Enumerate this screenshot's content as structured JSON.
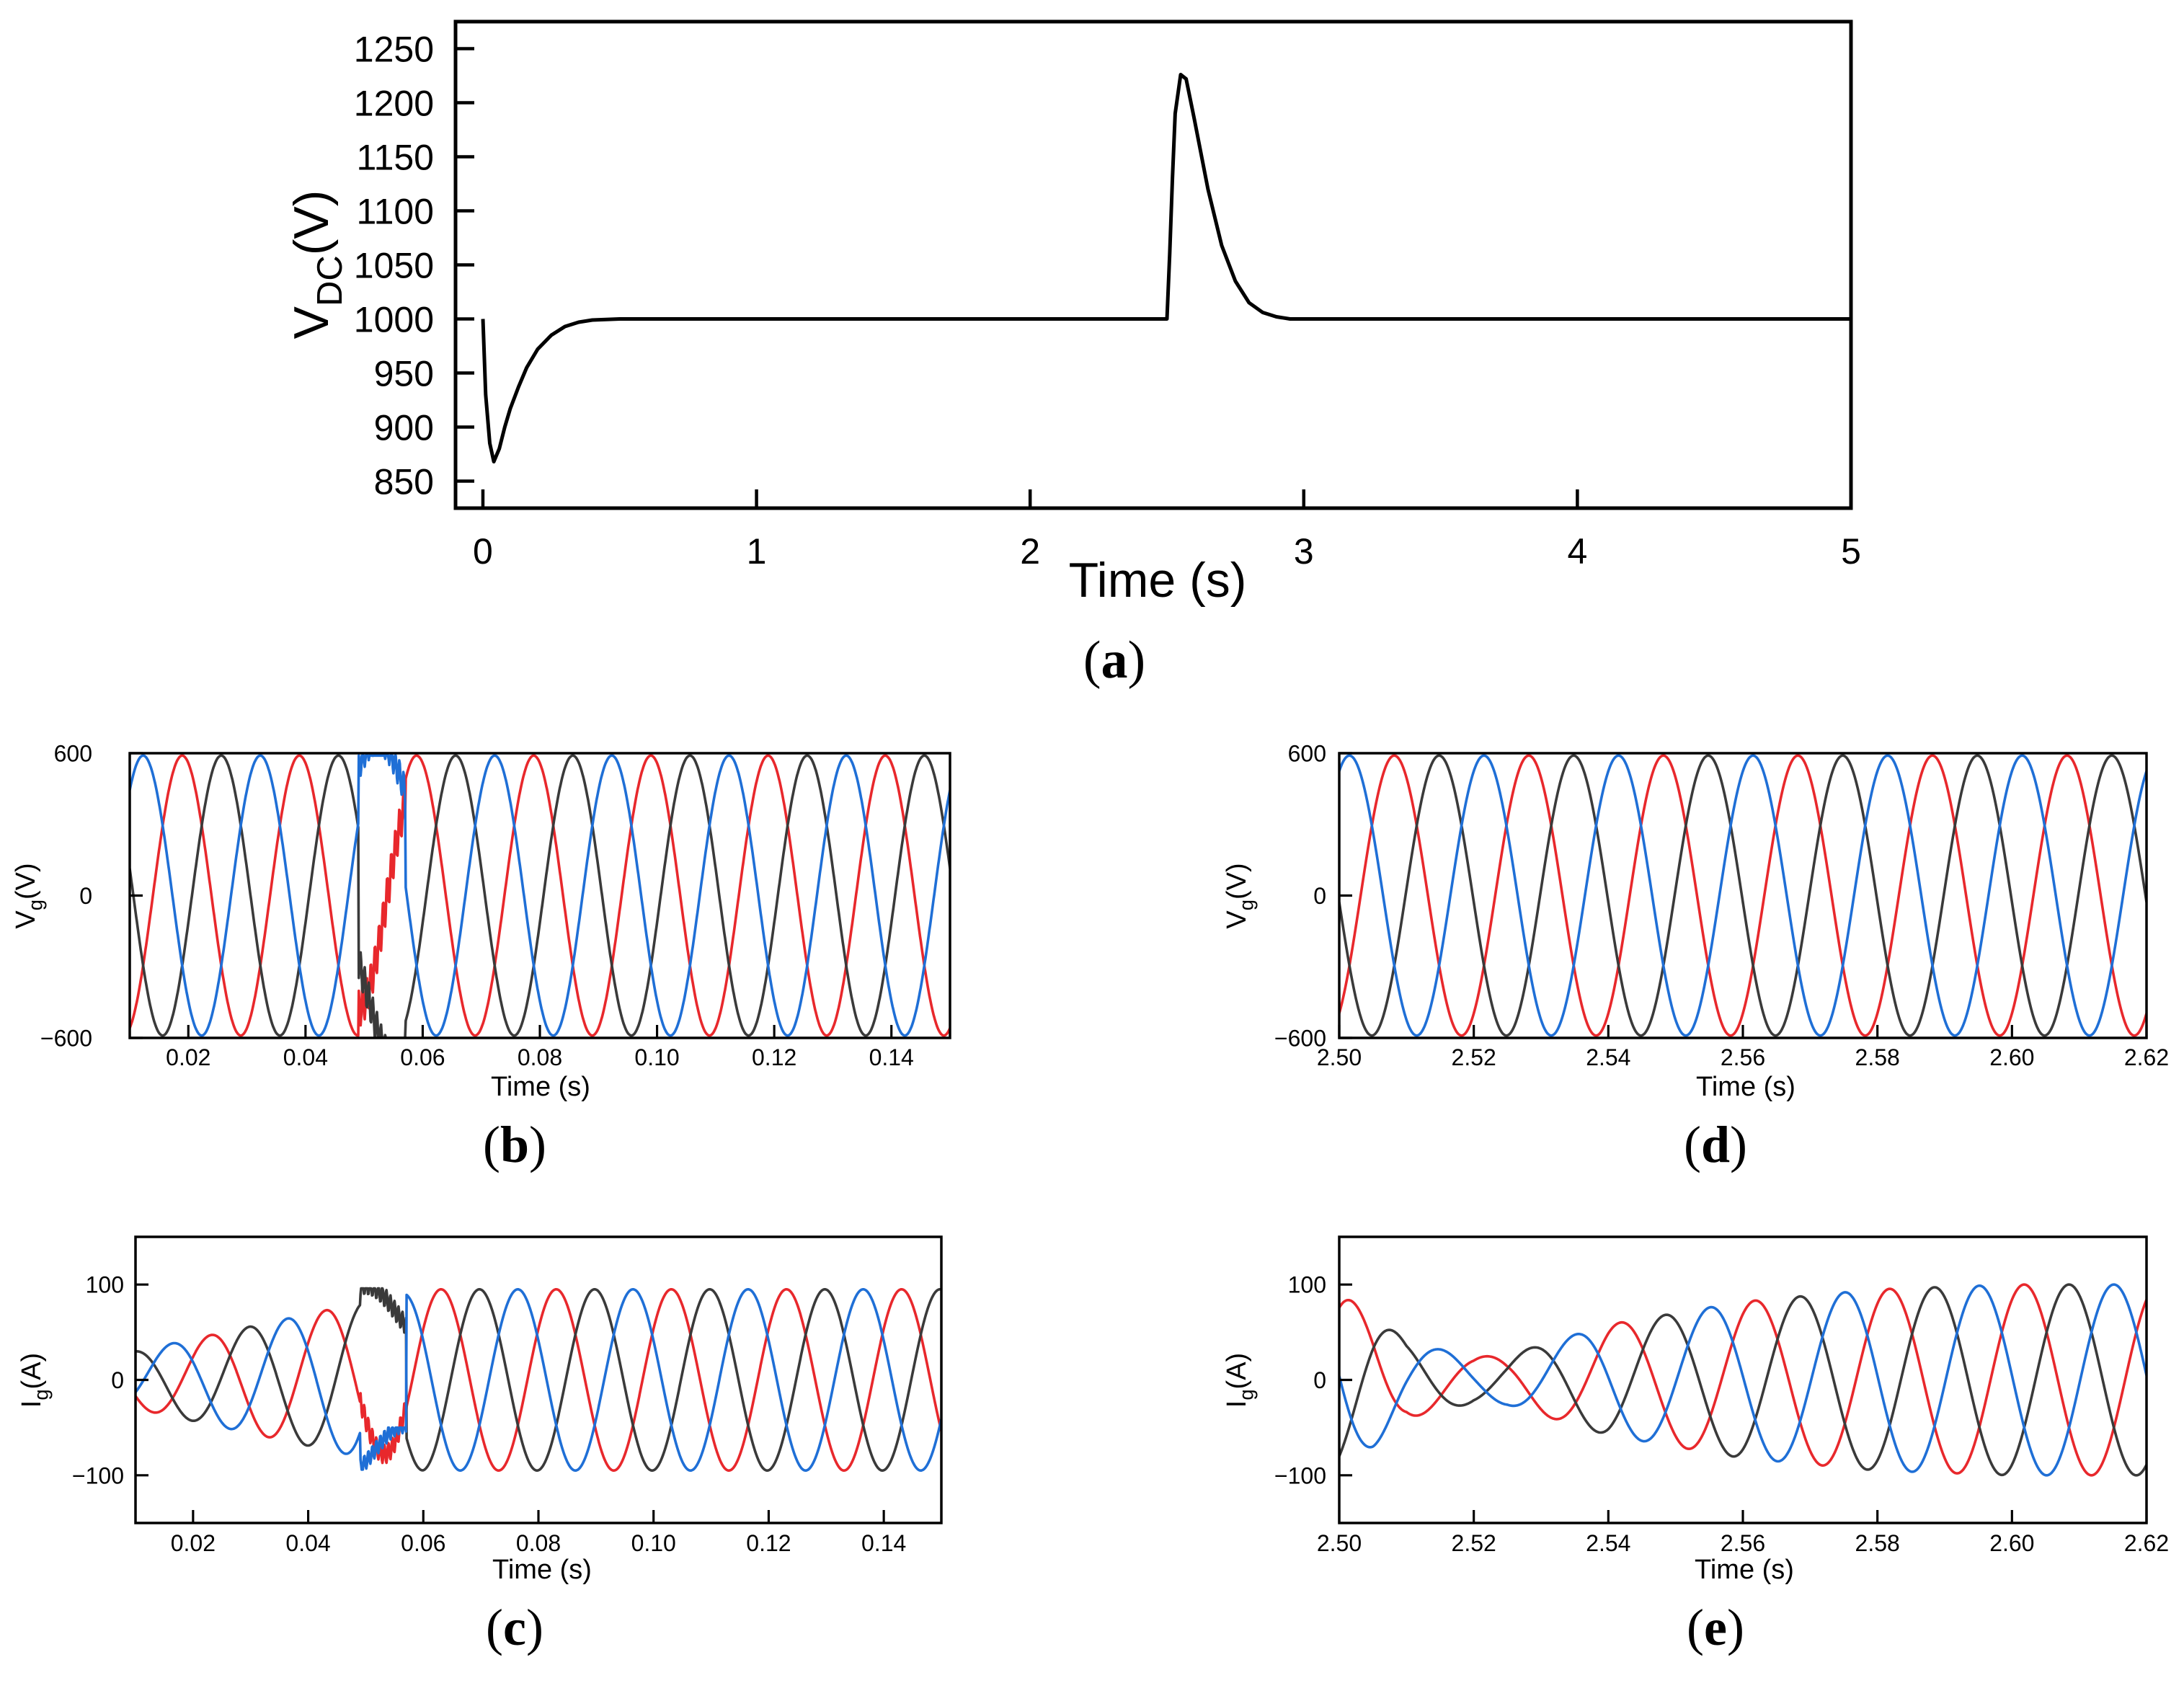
{
  "chart_data": [
    {
      "id": "a",
      "panel_label": "a",
      "type": "line",
      "title": "",
      "xlabel": "Time (s)",
      "ylabel_main": "V",
      "ylabel_sub": "DC",
      "ylabel_unit": "(V)",
      "xlim": [
        -0.1,
        5
      ],
      "ylim": [
        825,
        1275
      ],
      "xticks": [
        0,
        1,
        2,
        3,
        4,
        5
      ],
      "xtick_labels": [
        "0",
        "1",
        "2",
        "3",
        "4",
        "5"
      ],
      "yticks": [
        850,
        900,
        950,
        1000,
        1050,
        1100,
        1150,
        1200,
        1250
      ],
      "ytick_labels": [
        "850",
        "900",
        "950",
        "1000",
        "1050",
        "1100",
        "1150",
        "1200",
        "1250"
      ],
      "grid": false,
      "series": [
        {
          "name": "V_DC",
          "color": "#000000",
          "x": [
            0,
            0.01,
            0.025,
            0.04,
            0.06,
            0.08,
            0.1,
            0.13,
            0.16,
            0.2,
            0.25,
            0.3,
            0.35,
            0.4,
            0.5,
            0.7,
            1.0,
            1.5,
            2.0,
            2.49,
            2.5,
            2.51,
            2.52,
            2.53,
            2.55,
            2.57,
            2.6,
            2.65,
            2.7,
            2.75,
            2.8,
            2.85,
            2.9,
            2.95,
            3.0,
            3.5,
            4.0,
            4.5,
            5.0
          ],
          "values": [
            1000,
            930,
            885,
            868,
            880,
            900,
            917,
            937,
            955,
            972,
            985,
            993,
            997,
            999,
            1000,
            1000,
            1000,
            1000,
            1000,
            1000,
            1000,
            1060,
            1130,
            1190,
            1226,
            1222,
            1185,
            1120,
            1068,
            1035,
            1015,
            1006,
            1002,
            1000,
            1000,
            1000,
            1000,
            1000,
            1000
          ]
        }
      ]
    },
    {
      "id": "b",
      "panel_label": "b",
      "type": "line",
      "title": "",
      "xlabel": "Time (s)",
      "ylabel_main": "V",
      "ylabel_sub": "g",
      "ylabel_unit": "(V)",
      "xlim": [
        0.01,
        0.15
      ],
      "ylim": [
        -600,
        600
      ],
      "xticks": [
        0.02,
        0.04,
        0.06,
        0.08,
        0.1,
        0.12,
        0.14
      ],
      "xtick_labels": [
        "0.02",
        "0.04",
        "0.06",
        "0.08",
        "0.10",
        "0.12",
        "0.14"
      ],
      "yticks": [
        -600,
        0,
        600
      ],
      "ytick_labels": [
        "−600",
        "0",
        "600"
      ],
      "grid": false,
      "waveform": {
        "frequency_hz": 50,
        "amplitude": 590,
        "phase_base": 1.9,
        "disturbance_window": [
          0.049,
          0.057
        ]
      },
      "series": [
        {
          "name": "phase-a",
          "color": "#e8282c"
        },
        {
          "name": "phase-b",
          "color": "#3a3a3a"
        },
        {
          "name": "phase-c",
          "color": "#1f6fd6"
        }
      ]
    },
    {
      "id": "c",
      "panel_label": "c",
      "type": "line",
      "title": "",
      "xlabel": "Time (s)",
      "ylabel_main": "I",
      "ylabel_sub": "g",
      "ylabel_unit": "(A)",
      "xlim": [
        0.01,
        0.15
      ],
      "ylim": [
        -150,
        150
      ],
      "xticks": [
        0.02,
        0.04,
        0.06,
        0.08,
        0.1,
        0.12,
        0.14
      ],
      "xtick_labels": [
        "0.02",
        "0.04",
        "0.06",
        "0.08",
        "0.10",
        "0.12",
        "0.14"
      ],
      "yticks": [
        -100,
        0,
        100
      ],
      "ytick_labels": [
        "−100",
        "0",
        "100"
      ],
      "grid": false,
      "waveform": {
        "frequency_hz": 50,
        "amplitude_start": 30,
        "amplitude_end": 95,
        "ramp_end": 0.06,
        "phase_base": 0.6,
        "disturbance_window": [
          0.049,
          0.057
        ]
      },
      "series": [
        {
          "name": "phase-a",
          "color": "#e8282c"
        },
        {
          "name": "phase-b",
          "color": "#3a3a3a"
        },
        {
          "name": "phase-c",
          "color": "#1f6fd6"
        }
      ]
    },
    {
      "id": "d",
      "panel_label": "d",
      "type": "line",
      "title": "",
      "xlabel": "Time (s)",
      "ylabel_main": "V",
      "ylabel_sub": "g",
      "ylabel_unit": "(V)",
      "xlim": [
        2.5,
        2.62
      ],
      "ylim": [
        -600,
        600
      ],
      "xticks": [
        2.5,
        2.52,
        2.54,
        2.56,
        2.58,
        2.6,
        2.62
      ],
      "xtick_labels": [
        "2.50",
        "2.52",
        "2.54",
        "2.56",
        "2.58",
        "2.60",
        "2.62"
      ],
      "yticks": [
        -600,
        0,
        600
      ],
      "ytick_labels": [
        "−600",
        "0",
        "600"
      ],
      "grid": false,
      "waveform": {
        "frequency_hz": 50,
        "amplitude": 590,
        "phase_base": -1.0
      },
      "series": [
        {
          "name": "phase-a",
          "color": "#e8282c"
        },
        {
          "name": "phase-b",
          "color": "#3a3a3a"
        },
        {
          "name": "phase-c",
          "color": "#1f6fd6"
        }
      ]
    },
    {
      "id": "e",
      "panel_label": "e",
      "type": "line",
      "title": "",
      "xlabel": "Time (s)",
      "ylabel_main": "I",
      "ylabel_sub": "g",
      "ylabel_unit": "(A)",
      "xlim": [
        2.5,
        2.62
      ],
      "ylim": [
        -150,
        150
      ],
      "xticks": [
        2.5,
        2.52,
        2.54,
        2.56,
        2.58,
        2.6,
        2.62
      ],
      "xtick_labels": [
        "2.50",
        "2.52",
        "2.54",
        "2.56",
        "2.58",
        "2.60",
        "2.62"
      ],
      "yticks": [
        -100,
        0,
        100
      ],
      "ytick_labels": [
        "−100",
        "0",
        "100"
      ],
      "grid": false,
      "waveform": {
        "frequency_hz": 50,
        "envelope_t": [
          2.5,
          2.505,
          2.51,
          2.52,
          2.525,
          2.54,
          2.56,
          2.58,
          2.6,
          2.62
        ],
        "envelope_a": [
          90,
          70,
          40,
          24,
          26,
          58,
          82,
          95,
          100,
          100
        ],
        "phase_base": 1.0
      },
      "series": [
        {
          "name": "phase-a",
          "color": "#e8282c"
        },
        {
          "name": "phase-b",
          "color": "#3a3a3a"
        },
        {
          "name": "phase-c",
          "color": "#1f6fd6"
        }
      ]
    }
  ]
}
